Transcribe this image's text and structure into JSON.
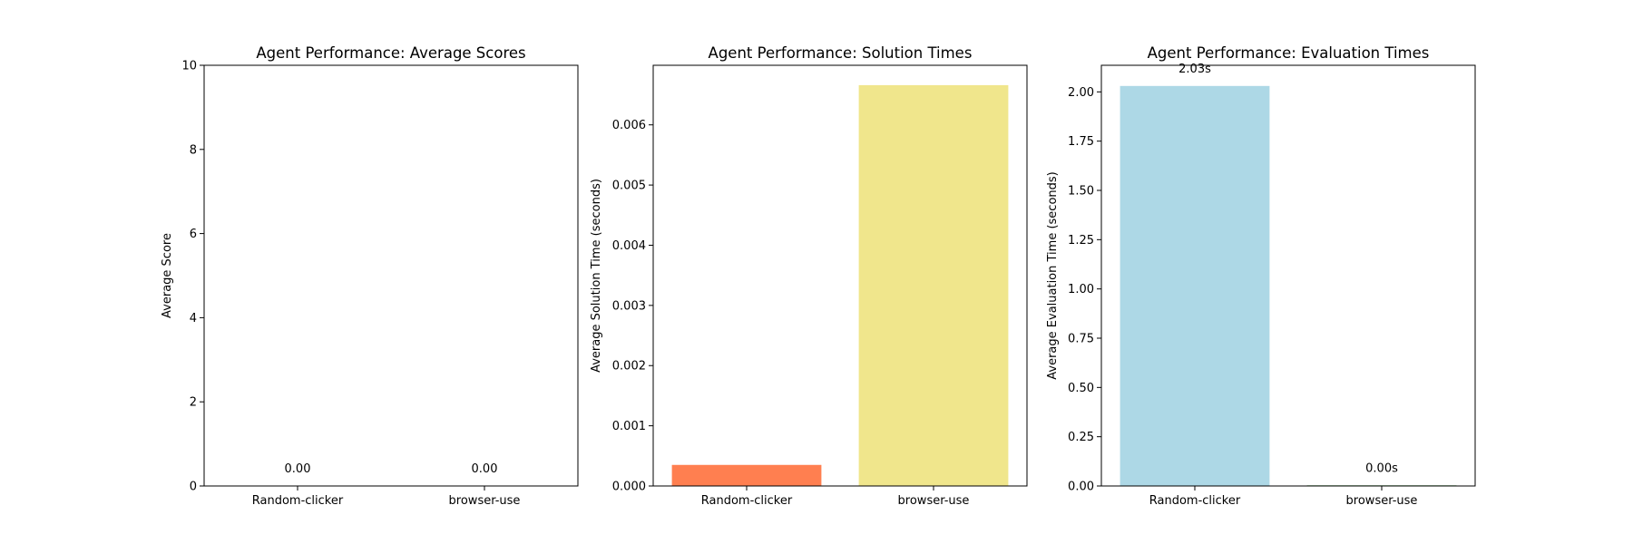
{
  "chart_data": [
    {
      "type": "bar",
      "title": "Agent Performance: Average Scores",
      "xlabel": "",
      "ylabel": "Average Score",
      "categories": [
        "Random-clicker",
        "browser-use"
      ],
      "values": [
        0.0,
        0.0
      ],
      "colors": [
        "#add8e6",
        "#90ee90"
      ],
      "data_labels": [
        "0.00",
        "0.00"
      ],
      "ylim": [
        0,
        10
      ],
      "yticks": [
        0,
        2,
        4,
        6,
        8,
        10
      ],
      "ytick_labels": [
        "0",
        "2",
        "4",
        "6",
        "8",
        "10"
      ],
      "grid": false,
      "legend": "none"
    },
    {
      "type": "bar",
      "title": "Agent Performance: Solution Times",
      "xlabel": "",
      "ylabel": "Average Solution Time (seconds)",
      "categories": [
        "Random-clicker",
        "browser-use"
      ],
      "values": [
        0.00035,
        0.00666
      ],
      "colors": [
        "#ff7f50",
        "#f0e68c"
      ],
      "data_labels": [
        "",
        ""
      ],
      "ylim": [
        0,
        0.00699
      ],
      "yticks": [
        0,
        0.001,
        0.002,
        0.003,
        0.004,
        0.005,
        0.006
      ],
      "ytick_labels": [
        "0.000",
        "0.001",
        "0.002",
        "0.003",
        "0.004",
        "0.005",
        "0.006"
      ],
      "grid": false,
      "legend": "none"
    },
    {
      "type": "bar",
      "title": "Agent Performance: Evaluation Times",
      "xlabel": "",
      "ylabel": "Average Evaluation Time (seconds)",
      "categories": [
        "Random-clicker",
        "browser-use"
      ],
      "values": [
        2.03,
        0.003
      ],
      "colors": [
        "#add8e6",
        "#228b22"
      ],
      "data_labels": [
        "2.03s",
        "0.00s"
      ],
      "ylim": [
        0,
        2.135
      ],
      "yticks": [
        0,
        0.25,
        0.5,
        0.75,
        1.0,
        1.25,
        1.5,
        1.75,
        2.0
      ],
      "ytick_labels": [
        "0.00",
        "0.25",
        "0.50",
        "0.75",
        "1.00",
        "1.25",
        "1.50",
        "1.75",
        "2.00"
      ],
      "grid": false,
      "legend": "none"
    }
  ]
}
